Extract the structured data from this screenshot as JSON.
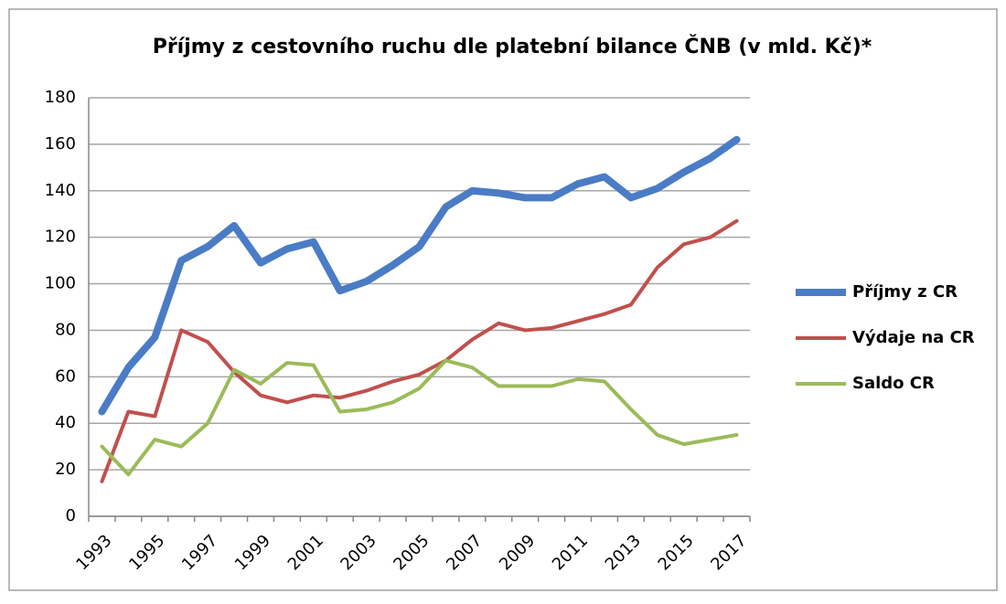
{
  "chart_data": {
    "type": "line",
    "title": "Příjmy z cestovního ruchu dle platební bilance ČNB (v mld. Kč)*",
    "categories": [
      "1993",
      null,
      "1995",
      null,
      "1997",
      null,
      "1999",
      null,
      "2001",
      null,
      "2003",
      null,
      "2005",
      null,
      "2007",
      null,
      "2009",
      null,
      "2011",
      null,
      "2013",
      null,
      "2015",
      null,
      "2017"
    ],
    "series": [
      {
        "name": "Příjmy z CR",
        "color": "#4a7cc6",
        "values": [
          45,
          64,
          77,
          110,
          116,
          125,
          109,
          115,
          118,
          97,
          101,
          108,
          116,
          133,
          140,
          139,
          137,
          137,
          143,
          146,
          137,
          141,
          148,
          154,
          162
        ]
      },
      {
        "name": "Výdaje na CR",
        "color": "#c0504d",
        "values": [
          15,
          45,
          43,
          80,
          75,
          62,
          52,
          49,
          52,
          51,
          54,
          58,
          61,
          67,
          76,
          83,
          80,
          81,
          84,
          87,
          91,
          107,
          117,
          120,
          127
        ]
      },
      {
        "name": "Saldo CR",
        "color": "#9bbb59",
        "values": [
          30,
          18,
          33,
          30,
          40,
          63,
          57,
          66,
          65,
          45,
          46,
          49,
          55,
          67,
          64,
          56,
          56,
          56,
          59,
          58,
          46,
          35,
          31,
          33,
          35
        ]
      }
    ],
    "ylim": [
      0,
      180
    ],
    "yticks": [
      0,
      20,
      40,
      60,
      80,
      100,
      120,
      140,
      160,
      180
    ],
    "grid": true,
    "legend": "right"
  }
}
